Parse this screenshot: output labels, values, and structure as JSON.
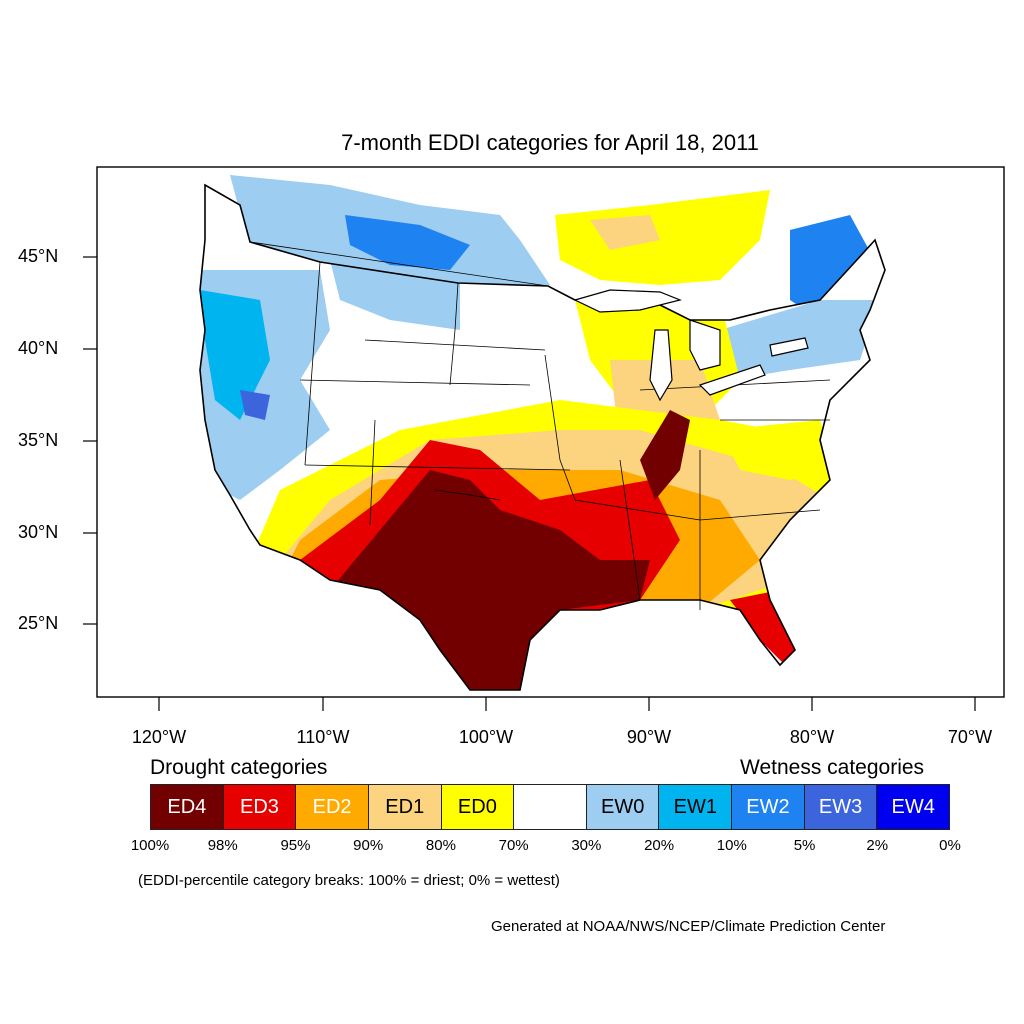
{
  "title": "7-month EDDI categories for April 18, 2011",
  "lat_labels": [
    "45°N",
    "40°N",
    "35°N",
    "30°N",
    "25°N"
  ],
  "lon_labels": [
    "120°W",
    "110°W",
    "100°W",
    "90°W",
    "80°W",
    "70°W"
  ],
  "legend": {
    "drought_heading": "Drought categories",
    "wetness_heading": "Wetness categories",
    "categories": [
      {
        "label": "ED4",
        "color": "#730000",
        "text_color": "#ffffff"
      },
      {
        "label": "ED3",
        "color": "#e60000",
        "text_color": "#ffffff"
      },
      {
        "label": "ED2",
        "color": "#ffaa00",
        "text_color": "#ffffff"
      },
      {
        "label": "ED1",
        "color": "#fcd37f",
        "text_color": "#000000"
      },
      {
        "label": "ED0",
        "color": "#ffff00",
        "text_color": "#000000"
      },
      {
        "label": "",
        "color": "#ffffff",
        "text_color": "#000000"
      },
      {
        "label": "EW0",
        "color": "#9dcdf0",
        "text_color": "#000000"
      },
      {
        "label": "EW1",
        "color": "#00b4f0",
        "text_color": "#000000"
      },
      {
        "label": "EW2",
        "color": "#1e82f0",
        "text_color": "#ffffff"
      },
      {
        "label": "EW3",
        "color": "#3c64dc",
        "text_color": "#ffffff"
      },
      {
        "label": "EW4",
        "color": "#0000f0",
        "text_color": "#ffffff"
      }
    ],
    "breaks": [
      "100%",
      "98%",
      "95%",
      "90%",
      "80%",
      "70%",
      "30%",
      "20%",
      "10%",
      "5%",
      "2%",
      "0%"
    ]
  },
  "note": "(EDDI-percentile category breaks: 100% = driest; 0% = wettest)",
  "credit": "Generated at NOAA/NWS/NCEP/Climate Prediction Center"
}
